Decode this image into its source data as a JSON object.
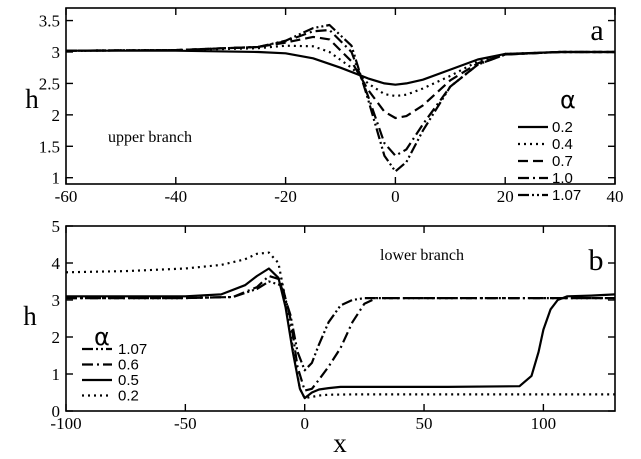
{
  "chart_data": [
    {
      "type": "line",
      "panel_label": "a",
      "annotation": "upper branch",
      "xlabel": "",
      "ylabel": "h",
      "xlim": [
        -60,
        40
      ],
      "ylim": [
        0.9,
        3.7
      ],
      "xticks": [
        -60,
        -40,
        -20,
        0,
        20,
        40
      ],
      "xtick_labels": [
        "-60",
        "-40",
        "-20",
        "0",
        "20",
        "40"
      ],
      "yticks": [
        1,
        1.5,
        2,
        2.5,
        3,
        3.5
      ],
      "ytick_labels": [
        "1",
        "1.5",
        "2",
        "2.5",
        "3",
        "3.5"
      ],
      "legend_title": "α",
      "legend_position": "right",
      "series": [
        {
          "name": "0.2",
          "dash": "solid",
          "x": [
            -60,
            -40,
            -25,
            -20,
            -15,
            -10,
            -5,
            -2,
            0,
            2,
            5,
            10,
            15,
            20,
            30,
            40
          ],
          "y": [
            3.02,
            3.02,
            3.0,
            2.98,
            2.9,
            2.75,
            2.58,
            2.5,
            2.48,
            2.5,
            2.56,
            2.72,
            2.88,
            2.97,
            3.0,
            3.0
          ]
        },
        {
          "name": "0.4",
          "dash": "dotted",
          "x": [
            -60,
            -40,
            -25,
            -20,
            -15,
            -12,
            -8,
            -5,
            -2,
            0,
            2,
            5,
            10,
            15,
            20,
            30,
            40
          ],
          "y": [
            3.02,
            3.03,
            3.06,
            3.1,
            3.09,
            3.0,
            2.75,
            2.5,
            2.33,
            2.3,
            2.32,
            2.42,
            2.62,
            2.85,
            2.97,
            3.0,
            3.0
          ]
        },
        {
          "name": "0.7",
          "dash": "dashed",
          "x": [
            -60,
            -40,
            -25,
            -20,
            -15,
            -12,
            -8,
            -5,
            -2,
            0,
            2,
            5,
            10,
            15,
            20,
            30,
            40
          ],
          "y": [
            3.02,
            3.03,
            3.08,
            3.15,
            3.24,
            3.2,
            2.85,
            2.4,
            2.05,
            1.95,
            1.98,
            2.15,
            2.55,
            2.82,
            2.96,
            3.0,
            3.0
          ]
        },
        {
          "name": "1.0",
          "dash": "dashdot",
          "x": [
            -60,
            -40,
            -25,
            -20,
            -15,
            -12,
            -8,
            -5,
            -2,
            0,
            2,
            5,
            10,
            15,
            20,
            30,
            40
          ],
          "y": [
            3.02,
            3.03,
            3.08,
            3.17,
            3.33,
            3.35,
            3.0,
            2.3,
            1.55,
            1.35,
            1.45,
            1.85,
            2.45,
            2.8,
            2.96,
            3.0,
            3.0
          ]
        },
        {
          "name": "1.07",
          "dash": "dashdotdot",
          "x": [
            -60,
            -40,
            -25,
            -20,
            -15,
            -12,
            -8,
            -5,
            -2,
            0,
            2,
            5,
            10,
            15,
            20,
            30,
            40
          ],
          "y": [
            3.02,
            3.03,
            3.08,
            3.18,
            3.38,
            3.43,
            3.1,
            2.25,
            1.35,
            1.1,
            1.25,
            1.75,
            2.45,
            2.8,
            2.96,
            3.0,
            3.0
          ]
        }
      ]
    },
    {
      "type": "line",
      "panel_label": "b",
      "annotation": "lower branch",
      "xlabel": "x",
      "ylabel": "h",
      "xlim": [
        -100,
        130
      ],
      "ylim": [
        0,
        5
      ],
      "xticks": [
        -100,
        -50,
        0,
        50,
        100
      ],
      "xtick_labels": [
        "-100",
        "-50",
        "0",
        "50",
        "100"
      ],
      "yticks": [
        0,
        1,
        2,
        3,
        4,
        5
      ],
      "ytick_labels": [
        "0",
        "1",
        "2",
        "3",
        "4",
        "5"
      ],
      "legend_title": "α",
      "legend_position": "bottom-left",
      "series": [
        {
          "name": "1.07",
          "dash": "dashdotdot",
          "x": [
            -100,
            -50,
            -30,
            -20,
            -15,
            -10,
            -6,
            -3,
            0,
            3,
            6,
            10,
            15,
            20,
            25,
            30,
            40,
            60,
            100,
            130
          ],
          "y": [
            3.05,
            3.05,
            3.08,
            3.3,
            3.5,
            3.4,
            2.6,
            1.6,
            1.1,
            1.3,
            1.8,
            2.4,
            2.85,
            3.0,
            3.05,
            3.05,
            3.05,
            3.05,
            3.05,
            3.05
          ]
        },
        {
          "name": "0.6",
          "dash": "dashdot",
          "x": [
            -100,
            -50,
            -30,
            -20,
            -15,
            -10,
            -6,
            -3,
            0,
            3,
            6,
            10,
            15,
            20,
            25,
            30,
            40,
            60,
            100,
            130
          ],
          "y": [
            3.05,
            3.05,
            3.08,
            3.35,
            3.65,
            3.55,
            2.5,
            1.2,
            0.55,
            0.6,
            0.85,
            1.2,
            1.7,
            2.4,
            2.9,
            3.05,
            3.05,
            3.05,
            3.05,
            3.05
          ]
        },
        {
          "name": "0.5",
          "dash": "solid",
          "x": [
            -100,
            -50,
            -35,
            -25,
            -20,
            -15,
            -11,
            -8,
            -5,
            -2,
            0,
            3,
            6,
            10,
            15,
            30,
            60,
            90,
            95,
            98,
            100,
            103,
            106,
            110,
            120,
            130
          ],
          "y": [
            3.1,
            3.1,
            3.15,
            3.4,
            3.65,
            3.85,
            3.6,
            2.8,
            1.6,
            0.6,
            0.35,
            0.5,
            0.58,
            0.62,
            0.65,
            0.65,
            0.65,
            0.67,
            0.95,
            1.6,
            2.2,
            2.75,
            3.0,
            3.1,
            3.12,
            3.15
          ]
        },
        {
          "name": "0.2",
          "dash": "dotted",
          "x": [
            -100,
            -75,
            -50,
            -35,
            -25,
            -20,
            -15,
            -11,
            -8,
            -5,
            -2,
            0,
            3,
            6,
            10,
            20,
            40,
            70,
            100,
            130
          ],
          "y": [
            3.75,
            3.78,
            3.85,
            3.95,
            4.1,
            4.25,
            4.28,
            4.0,
            3.0,
            1.7,
            0.6,
            0.35,
            0.38,
            0.42,
            0.44,
            0.45,
            0.45,
            0.45,
            0.45,
            0.45
          ]
        }
      ]
    }
  ]
}
